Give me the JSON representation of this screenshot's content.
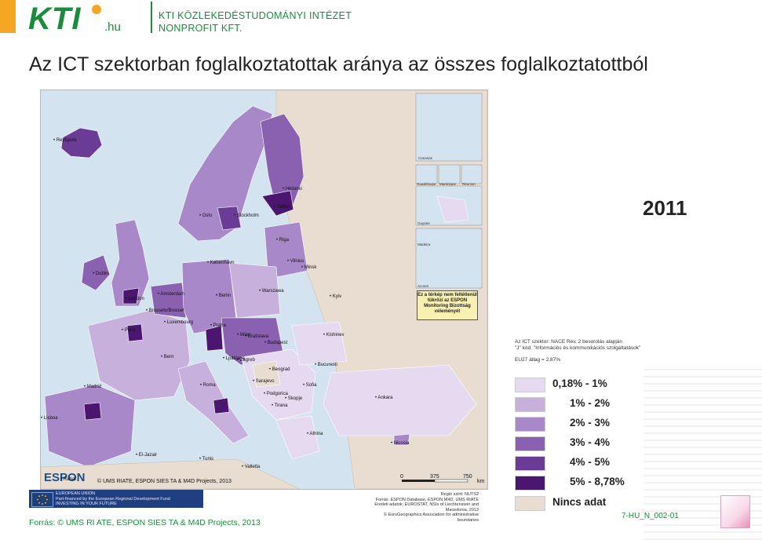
{
  "header": {
    "logo_text": "KTI",
    "logo_suffix": ".hu",
    "org_line1": "KTI KÖZLEKEDÉSTUDOMÁNYI INTÉZET",
    "org_line2": "NONPROFIT KFT."
  },
  "title": "Az ICT szektorban foglalkoztatottak aránya az összes foglalkoztatottból",
  "year": "2011",
  "map": {
    "cities": [
      "Reykjavik",
      "Dublin",
      "London",
      "Amsterdam",
      "Brussels/Brussel",
      "Luxembourg",
      "Paris",
      "Bern",
      "Berlin",
      "Praha",
      "Wien",
      "Bratislava",
      "Budapest",
      "Ljubljana",
      "Zagreb",
      "Beograd",
      "Sarajevo",
      "Podgorica",
      "Skopje",
      "Tirana",
      "Sofia",
      "Bucuresti",
      "Kishinev",
      "Kyiv",
      "Minsk",
      "Vilnius",
      "Riga",
      "Tallinn",
      "Helsinki",
      "Stockholm",
      "Oslo",
      "København",
      "Warszawa",
      "Roma",
      "Madrid",
      "Lisboa",
      "Athina",
      "Ankara",
      "Nicosia",
      "Valletta",
      "Tunis",
      "El-Jazair",
      "Rabat"
    ],
    "inset_labels": [
      "Canarias",
      "Guadeloupe",
      "Martinique",
      "Réunion",
      "Guyane",
      "Madeira",
      "Acores"
    ],
    "disclaimer": "Ez a térkép nem feltétlenül tükrözi az ESPON Monitoring Bizottság véleményét",
    "espon_logo": "ESPON",
    "credit": "© UMS RIATE, ESPON SIES   TA & M4D Projects, 2013",
    "scale_labels": [
      "0",
      "375",
      "750"
    ],
    "scale_unit": "km"
  },
  "notes": {
    "line1": "Az ICT szektor: NACE Rev. 2 besorolás alapján",
    "line2": "\"J\" kód: \"Információs és kommunikációs szolgáltatások\"",
    "line3": "EU27 átlag = 2,87%"
  },
  "legend": [
    {
      "label": "0,18% - 1%",
      "color": "#e6daf0"
    },
    {
      "label": "1% - 2%",
      "color": "#c8b0dc"
    },
    {
      "label": "2% - 3%",
      "color": "#a888c8"
    },
    {
      "label": "3% - 4%",
      "color": "#8a60b0"
    },
    {
      "label": "4% - 5%",
      "color": "#6a3c96"
    },
    {
      "label": "5% - 8,78%",
      "color": "#4a1670"
    },
    {
      "label": "Nincs adat",
      "color": "#e8ddd0"
    }
  ],
  "footer": {
    "eu_text": "EUROPEAN UNION\nPart-financed by the European Regional Development Fund\nINVESTING IN YOUR FUTURE",
    "source_small": "Regió szint: NUTS2\nForrás: ESPON Database, ESPON M4D, UMS RIATE\nEredeti adatok: EUROSTAT, NSIs of Liechtenstein and Macedonia, 2013\n© EuroGeographics Association for administrative boundaries",
    "source": "Forrás: © UMS RI ATE, ESPON SIES   TA & M4D Projects, 2013",
    "doc_code": "7-HU_N_002-01"
  }
}
